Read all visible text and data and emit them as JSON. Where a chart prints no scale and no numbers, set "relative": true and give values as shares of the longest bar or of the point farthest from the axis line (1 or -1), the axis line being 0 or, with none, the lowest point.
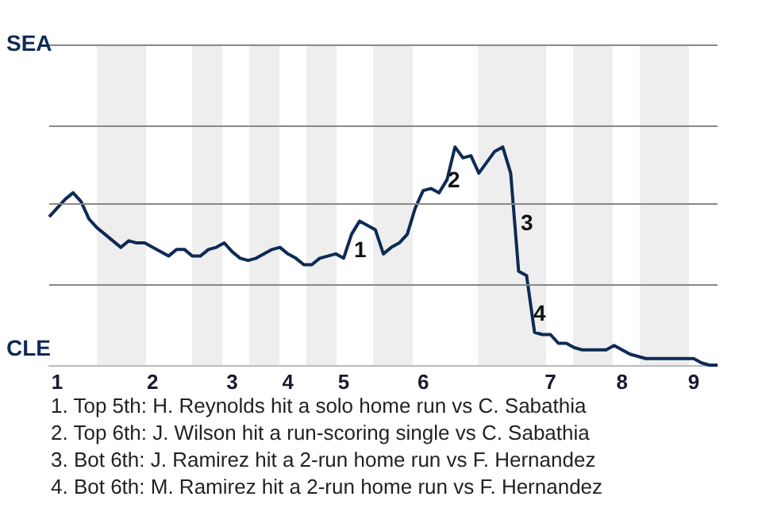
{
  "chart_data": {
    "type": "line",
    "relative": true,
    "categories": [
      null,
      "1",
      null,
      null,
      null,
      null,
      null,
      null,
      null,
      null,
      null,
      null,
      null,
      "2",
      null,
      null,
      null,
      null,
      null,
      null,
      null,
      null,
      null,
      "3",
      null,
      null,
      null,
      null,
      null,
      null,
      "4",
      null,
      null,
      null,
      null,
      null,
      null,
      "5",
      null,
      null,
      null,
      null,
      null,
      null,
      null,
      null,
      null,
      "6",
      null,
      null,
      null,
      null,
      null,
      null,
      null,
      null,
      null,
      null,
      null,
      null,
      null,
      null,
      null,
      "7",
      null,
      null,
      null,
      null,
      null,
      null,
      null,
      null,
      "8",
      null,
      null,
      null,
      null,
      null,
      null,
      null,
      null,
      "9",
      null,
      null,
      null
    ],
    "series": [
      {
        "color": "#0d2b55",
        "values": [
          0.68,
          0.72,
          0.76,
          0.79,
          0.75,
          0.67,
          0.63,
          0.6,
          0.57,
          0.54,
          0.57,
          0.56,
          0.56,
          0.54,
          0.52,
          0.5,
          0.53,
          0.53,
          0.5,
          0.5,
          0.53,
          0.54,
          0.56,
          0.52,
          0.49,
          0.48,
          0.49,
          0.51,
          0.53,
          0.54,
          0.51,
          0.49,
          0.46,
          0.46,
          0.49,
          0.5,
          0.51,
          0.49,
          0.6,
          0.66,
          0.64,
          0.62,
          0.51,
          0.54,
          0.56,
          0.6,
          0.72,
          0.8,
          0.81,
          0.79,
          0.85,
          1.0,
          0.95,
          0.96,
          0.88,
          0.93,
          0.98,
          1.0,
          0.88,
          0.43,
          0.41,
          0.15,
          0.14,
          0.14,
          0.1,
          0.1,
          0.08,
          0.07,
          0.07,
          0.07,
          0.07,
          0.09,
          0.07,
          0.05,
          0.04,
          0.03,
          0.03,
          0.03,
          0.03,
          0.03,
          0.03,
          0.03,
          0.01,
          0,
          0
        ]
      }
    ],
    "marker": "none",
    "ref_lines": [
      {
        "axis": "y",
        "value": 0.37,
        "color": "#888888"
      },
      {
        "axis": "y",
        "value": 0.74,
        "color": "#888888"
      },
      {
        "axis": "y",
        "value": 1.1,
        "color": "#888888"
      },
      {
        "axis": "y",
        "value": 1.47,
        "color": "#888888"
      }
    ],
    "annotations": [
      "SEA",
      "CLE",
      "1",
      "2",
      "3",
      "4",
      "1. Top 5th: H. Reynolds hit a solo home run vs C. Sabathia",
      "2. Top 6th: J. Wilson hit a run-scoring single vs C. Sabathia",
      "3. Bot 6th: J. Ramirez hit a 2-run home run vs F. Hernandez",
      "4. Bot 6th: M. Ramirez hit a 2-run home run vs F. Hernandez"
    ]
  }
}
